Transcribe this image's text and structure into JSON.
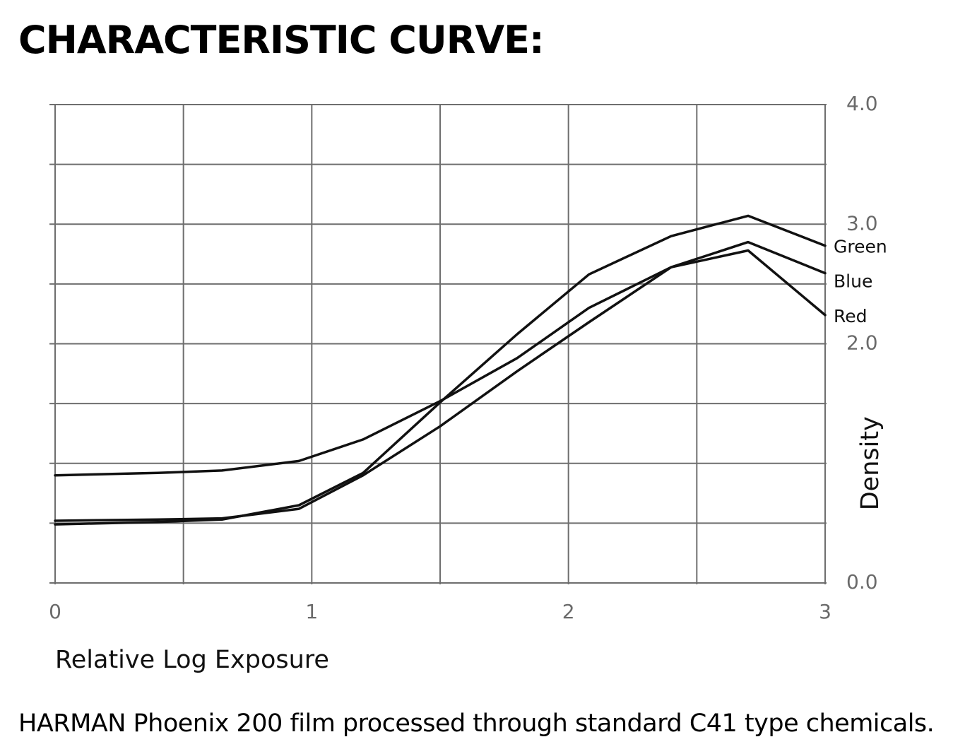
{
  "page": {
    "title": "CHARACTERISTIC CURVE:",
    "caption": "HARMAN Phoenix 200 film processed through standard C41 type chemicals."
  },
  "chart_data": {
    "type": "line",
    "title": "CHARACTERISTIC CURVE:",
    "xlabel": "Relative Log Exposure",
    "ylabel": "Density",
    "xlim": [
      0,
      3
    ],
    "ylim": [
      0,
      4
    ],
    "x_ticks": [
      {
        "value": 0,
        "label": "0"
      },
      {
        "value": 1,
        "label": "1"
      },
      {
        "value": 2,
        "label": "2"
      },
      {
        "value": 3,
        "label": "3"
      }
    ],
    "y_ticks": [
      {
        "value": 0,
        "label": "0.0"
      },
      {
        "value": 2,
        "label": "2.0"
      },
      {
        "value": 3,
        "label": "3.0"
      },
      {
        "value": 4,
        "label": "4.0"
      }
    ],
    "x_grid": [
      0,
      0.5,
      1,
      1.5,
      2,
      2.5,
      3
    ],
    "y_grid": [
      0,
      0.5,
      1,
      1.5,
      2,
      2.5,
      3,
      3.5,
      4
    ],
    "grid": true,
    "y_axis_side": "right",
    "legend": "inline-right",
    "series": [
      {
        "name": "Green",
        "color": "#111111",
        "x": [
          0,
          0.4,
          0.65,
          0.95,
          1.2,
          1.5,
          1.8,
          2.08,
          2.4,
          2.7,
          3.0
        ],
        "y": [
          0.49,
          0.51,
          0.53,
          0.65,
          0.92,
          1.51,
          2.08,
          2.58,
          2.9,
          3.07,
          2.82
        ]
      },
      {
        "name": "Blue",
        "color": "#111111",
        "x": [
          0,
          0.4,
          0.65,
          0.95,
          1.2,
          1.5,
          1.8,
          2.08,
          2.4,
          2.7,
          3.0
        ],
        "y": [
          0.52,
          0.53,
          0.54,
          0.62,
          0.9,
          1.31,
          1.77,
          2.18,
          2.64,
          2.85,
          2.59
        ]
      },
      {
        "name": "Red",
        "color": "#111111",
        "x": [
          0,
          0.4,
          0.65,
          0.95,
          1.2,
          1.5,
          1.8,
          2.08,
          2.4,
          2.7,
          3.0
        ],
        "y": [
          0.9,
          0.92,
          0.94,
          1.02,
          1.2,
          1.52,
          1.88,
          2.3,
          2.64,
          2.78,
          2.24
        ]
      }
    ]
  }
}
